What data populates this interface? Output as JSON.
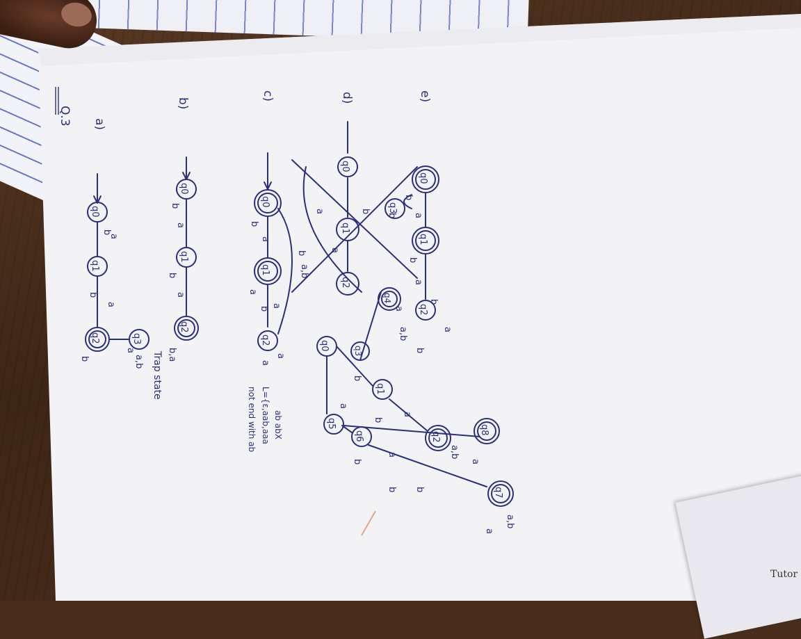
{
  "page_heading": "Q.3",
  "parts": {
    "a": {
      "label": "a)",
      "states": [
        "q0",
        "q1",
        "q2",
        "q3"
      ],
      "transition_labels": [
        "b",
        "a",
        "b",
        "a",
        "b",
        "a",
        "a,b"
      ],
      "note": "Trap state"
    },
    "b": {
      "label": "b)",
      "states": [
        "q0",
        "q1",
        "q2"
      ],
      "transition_labels": [
        "b",
        "a",
        "b",
        "a",
        "b,a"
      ]
    },
    "c": {
      "label": "c)",
      "states": [
        "q0",
        "q1",
        "q2"
      ],
      "transition_labels": [
        "b",
        "a",
        "a",
        "b",
        "a",
        "b",
        "a"
      ],
      "notes": [
        "not end with ab",
        "L={ε,aab,aaa",
        "ab abX"
      ]
    },
    "d": {
      "label": "d)",
      "states": [
        "q0",
        "q1",
        "q2",
        "q3",
        "q4",
        "q5",
        "q6",
        "q7",
        "q8"
      ],
      "crossed_states": [
        "q0",
        "q1",
        "q2",
        "q3"
      ],
      "transition_labels": [
        "a",
        "a,b",
        "a",
        "b",
        "a",
        "b",
        "a",
        "b",
        "a",
        "a",
        "a,b",
        "b",
        "a",
        "b",
        "b",
        "a",
        "a,b",
        "a",
        "b",
        "b",
        "a"
      ]
    },
    "e": {
      "label": "e)",
      "states": [
        "q0",
        "q1",
        "q2"
      ],
      "transition_labels": [
        "b",
        "a",
        "b",
        "b",
        "a",
        "a,b"
      ]
    }
  },
  "corner_text": "Tutor"
}
